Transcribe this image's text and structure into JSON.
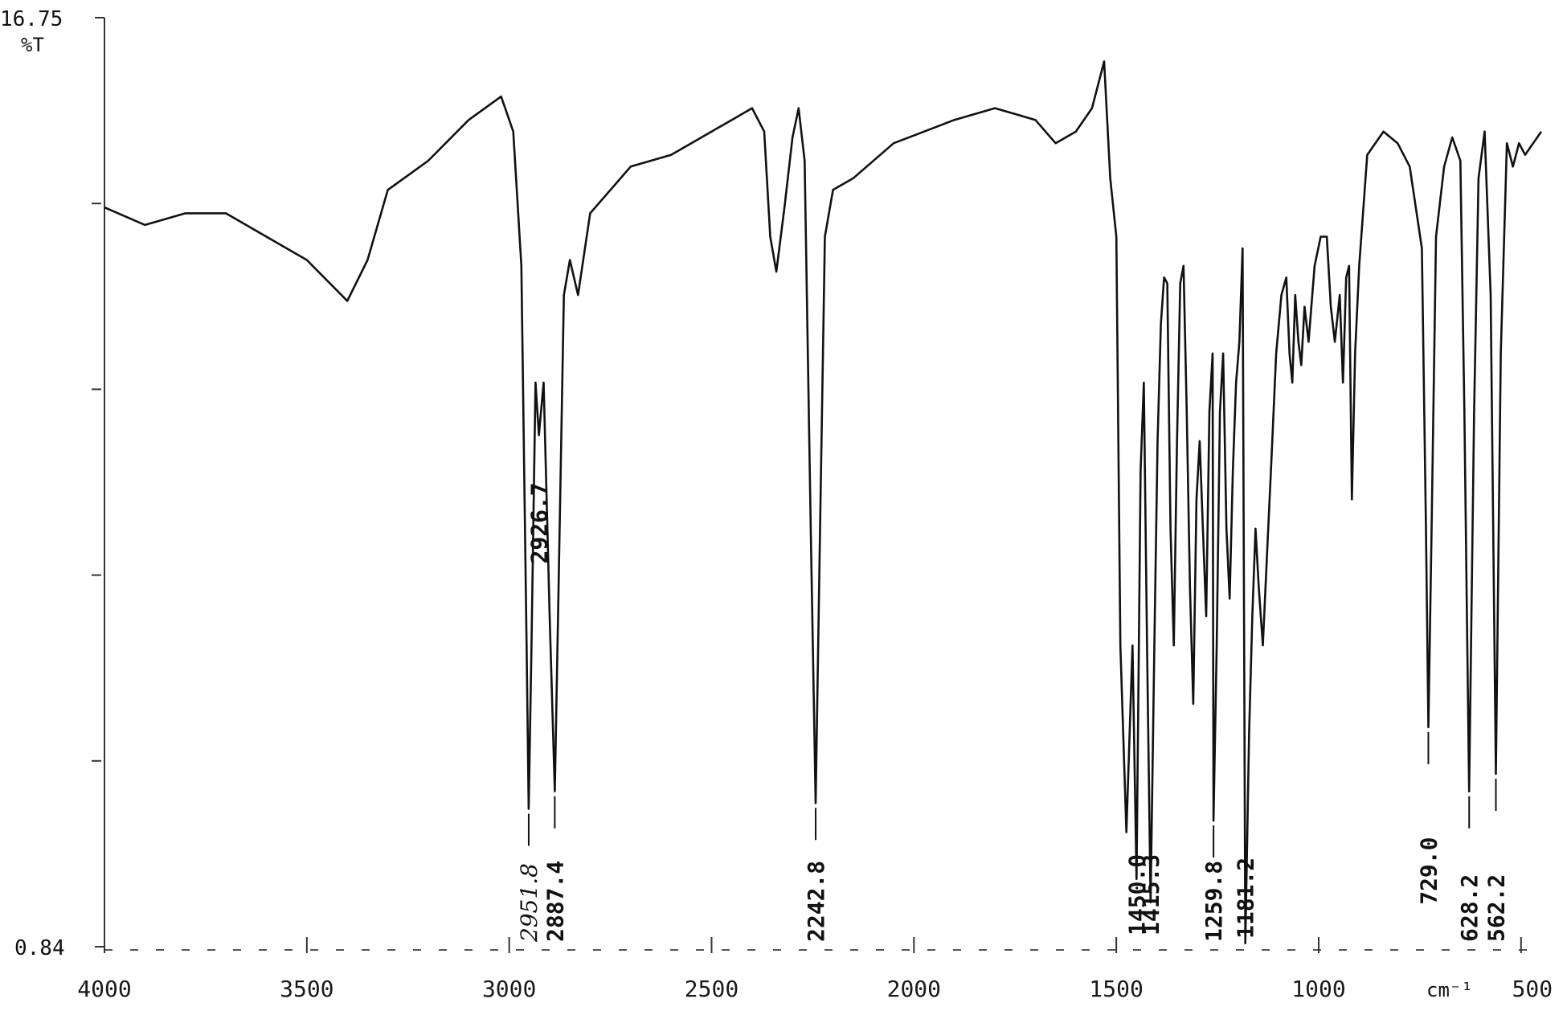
{
  "chart_data": {
    "type": "line",
    "title": "",
    "xlabel": "",
    "ylabel": "%T",
    "x_unit": "cm⁻¹",
    "xlim": [
      4000,
      450
    ],
    "ylim": [
      0.84,
      16.75
    ],
    "y_tick_labels": [
      "16.75",
      "0.84"
    ],
    "x_ticks": [
      {
        "value": 4000,
        "label": "4000"
      },
      {
        "value": 3500,
        "label": "3500"
      },
      {
        "value": 3000,
        "label": "3000"
      },
      {
        "value": 2500,
        "label": "2500"
      },
      {
        "value": 2000,
        "label": "2000"
      },
      {
        "value": 1500,
        "label": "1500"
      },
      {
        "value": 1000,
        "label": "1000"
      },
      {
        "value": 500,
        "label": "500"
      }
    ],
    "grid": false,
    "legend": "none",
    "series": [
      {
        "points": [
          [
            4000,
            13.5
          ],
          [
            3900,
            13.2
          ],
          [
            3800,
            13.4
          ],
          [
            3700,
            13.4
          ],
          [
            3600,
            13.0
          ],
          [
            3500,
            12.6
          ],
          [
            3400,
            11.9
          ],
          [
            3350,
            12.6
          ],
          [
            3300,
            13.8
          ],
          [
            3200,
            14.3
          ],
          [
            3100,
            15.0
          ],
          [
            3020,
            15.4
          ],
          [
            2990,
            14.8
          ],
          [
            2970,
            12.5
          ],
          [
            2957,
            6.0
          ],
          [
            2951.8,
            3.2
          ],
          [
            2945,
            6.0
          ],
          [
            2935,
            10.5
          ],
          [
            2926.7,
            9.6
          ],
          [
            2915,
            10.5
          ],
          [
            2900,
            6.5
          ],
          [
            2887.4,
            3.5
          ],
          [
            2878,
            7.0
          ],
          [
            2865,
            12.0
          ],
          [
            2850,
            12.6
          ],
          [
            2830,
            12.0
          ],
          [
            2800,
            13.4
          ],
          [
            2700,
            14.2
          ],
          [
            2600,
            14.4
          ],
          [
            2450,
            15.0
          ],
          [
            2400,
            15.2
          ],
          [
            2370,
            14.8
          ],
          [
            2355,
            13.0
          ],
          [
            2340,
            12.4
          ],
          [
            2320,
            13.5
          ],
          [
            2300,
            14.7
          ],
          [
            2285,
            15.2
          ],
          [
            2270,
            14.3
          ],
          [
            2255,
            8.0
          ],
          [
            2242.8,
            3.3
          ],
          [
            2232,
            8.0
          ],
          [
            2220,
            13.0
          ],
          [
            2200,
            13.8
          ],
          [
            2150,
            14.0
          ],
          [
            2050,
            14.6
          ],
          [
            1900,
            15.0
          ],
          [
            1800,
            15.2
          ],
          [
            1700,
            15.0
          ],
          [
            1650,
            14.6
          ],
          [
            1600,
            14.8
          ],
          [
            1560,
            15.2
          ],
          [
            1530,
            16.0
          ],
          [
            1515,
            14.0
          ],
          [
            1500,
            13.0
          ],
          [
            1490,
            6.0
          ],
          [
            1475,
            2.8
          ],
          [
            1460,
            6.0
          ],
          [
            1450.0,
            2.0
          ],
          [
            1440,
            9.0
          ],
          [
            1432,
            10.5
          ],
          [
            1424,
            6.0
          ],
          [
            1415.3,
            1.6
          ],
          [
            1406,
            6.0
          ],
          [
            1398,
            9.5
          ],
          [
            1390,
            11.5
          ],
          [
            1382,
            12.3
          ],
          [
            1374,
            12.2
          ],
          [
            1366,
            8.0
          ],
          [
            1358,
            6.0
          ],
          [
            1350,
            9.5
          ],
          [
            1342,
            12.2
          ],
          [
            1334,
            12.5
          ],
          [
            1326,
            10.0
          ],
          [
            1318,
            7.0
          ],
          [
            1310,
            5.0
          ],
          [
            1302,
            8.5
          ],
          [
            1294,
            9.5
          ],
          [
            1286,
            8.0
          ],
          [
            1278,
            6.5
          ],
          [
            1270,
            10.0
          ],
          [
            1262,
            11.0
          ],
          [
            1259.8,
            3.0
          ],
          [
            1252,
            6.0
          ],
          [
            1244,
            10.0
          ],
          [
            1236,
            11.0
          ],
          [
            1228,
            8.0
          ],
          [
            1220,
            6.8
          ],
          [
            1212,
            9.0
          ],
          [
            1204,
            10.5
          ],
          [
            1196,
            11.2
          ],
          [
            1188,
            12.8
          ],
          [
            1181.2,
            0.9
          ],
          [
            1172,
            4.5
          ],
          [
            1164,
            6.5
          ],
          [
            1156,
            8.0
          ],
          [
            1148,
            7.0
          ],
          [
            1138,
            6.0
          ],
          [
            1128,
            7.5
          ],
          [
            1118,
            9.0
          ],
          [
            1105,
            11.0
          ],
          [
            1092,
            12.0
          ],
          [
            1080,
            12.3
          ],
          [
            1072,
            11.0
          ],
          [
            1065,
            10.5
          ],
          [
            1058,
            12.0
          ],
          [
            1050,
            11.2
          ],
          [
            1043,
            10.8
          ],
          [
            1035,
            11.8
          ],
          [
            1025,
            11.2
          ],
          [
            1010,
            12.5
          ],
          [
            995,
            13.0
          ],
          [
            980,
            13.0
          ],
          [
            970,
            11.8
          ],
          [
            960,
            11.2
          ],
          [
            948,
            12.0
          ],
          [
            940,
            10.5
          ],
          [
            932,
            12.3
          ],
          [
            925,
            12.5
          ],
          [
            918,
            8.5
          ],
          [
            910,
            11.0
          ],
          [
            900,
            12.5
          ],
          [
            880,
            14.4
          ],
          [
            840,
            14.8
          ],
          [
            805,
            14.6
          ],
          [
            775,
            14.2
          ],
          [
            745,
            12.8
          ],
          [
            735,
            8.0
          ],
          [
            729.0,
            4.6
          ],
          [
            721,
            8.0
          ],
          [
            710,
            13.0
          ],
          [
            690,
            14.2
          ],
          [
            670,
            14.7
          ],
          [
            650,
            14.3
          ],
          [
            640,
            10.0
          ],
          [
            628.2,
            3.5
          ],
          [
            616,
            10.0
          ],
          [
            605,
            14.0
          ],
          [
            590,
            14.8
          ],
          [
            575,
            12.0
          ],
          [
            562.2,
            3.8
          ],
          [
            550,
            11.0
          ],
          [
            535,
            14.6
          ],
          [
            520,
            14.2
          ],
          [
            505,
            14.6
          ],
          [
            490,
            14.4
          ],
          [
            470,
            14.6
          ],
          [
            450,
            14.8
          ]
        ]
      }
    ],
    "peaks": [
      {
        "value": 2951.8,
        "label": "2951.8",
        "handwritten": true
      },
      {
        "value": 2926.7,
        "label": "2926.7"
      },
      {
        "value": 2887.4,
        "label": "2887.4"
      },
      {
        "value": 2242.8,
        "label": "2242.8"
      },
      {
        "value": 1450.0,
        "label": "1450.0"
      },
      {
        "value": 1415.3,
        "label": "1415.3"
      },
      {
        "value": 1259.8,
        "label": "1259.8"
      },
      {
        "value": 1181.2,
        "label": "1181.2"
      },
      {
        "value": 729.0,
        "label": "729.0"
      },
      {
        "value": 628.2,
        "label": "628.2"
      },
      {
        "value": 562.2,
        "label": "562.2"
      }
    ]
  }
}
